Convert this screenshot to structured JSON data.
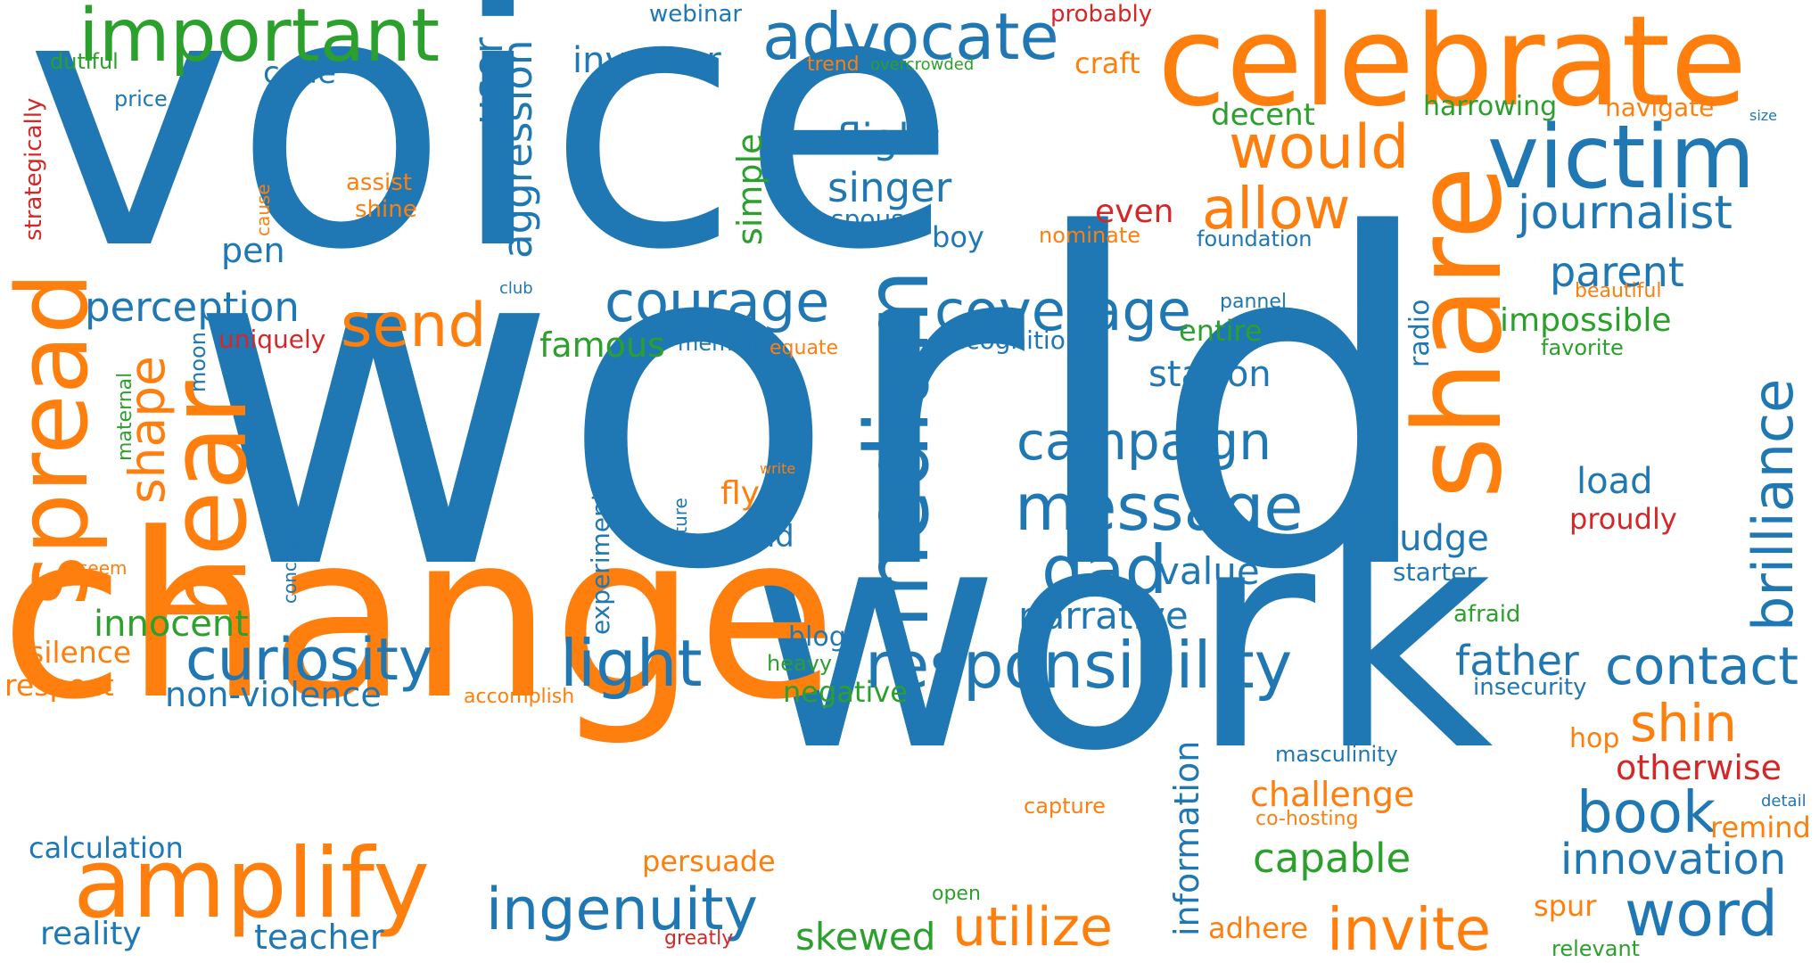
{
  "palette": {
    "blue": "#1f77b4",
    "orange": "#ff7f0e",
    "green": "#2ca02c",
    "red": "#d62728"
  },
  "words": [
    {
      "text": "voice",
      "color": "blue"
    },
    {
      "text": "world",
      "color": "blue"
    },
    {
      "text": "work",
      "color": "blue"
    },
    {
      "text": "change",
      "color": "orange"
    },
    {
      "text": "celebrate",
      "color": "orange"
    },
    {
      "text": "important",
      "color": "green"
    },
    {
      "text": "advocate",
      "color": "blue"
    },
    {
      "text": "victim",
      "color": "blue"
    },
    {
      "text": "journalist",
      "color": "blue"
    },
    {
      "text": "share",
      "color": "orange"
    },
    {
      "text": "would",
      "color": "orange"
    },
    {
      "text": "allow",
      "color": "orange"
    },
    {
      "text": "hear",
      "color": "orange"
    },
    {
      "text": "spread",
      "color": "orange"
    },
    {
      "text": "send",
      "color": "orange"
    },
    {
      "text": "amplify",
      "color": "orange"
    },
    {
      "text": "medium",
      "color": "blue"
    },
    {
      "text": "courage",
      "color": "blue"
    },
    {
      "text": "coverage",
      "color": "blue"
    },
    {
      "text": "perception",
      "color": "blue"
    },
    {
      "text": "curiosity",
      "color": "blue"
    },
    {
      "text": "light",
      "color": "blue"
    },
    {
      "text": "responsibility",
      "color": "blue"
    },
    {
      "text": "campaign",
      "color": "blue"
    },
    {
      "text": "message",
      "color": "blue"
    },
    {
      "text": "dad",
      "color": "blue"
    },
    {
      "text": "value",
      "color": "blue"
    },
    {
      "text": "narrative",
      "color": "blue"
    },
    {
      "text": "ingenuity",
      "color": "blue"
    },
    {
      "text": "contact",
      "color": "blue"
    },
    {
      "text": "father",
      "color": "blue"
    },
    {
      "text": "book",
      "color": "blue"
    },
    {
      "text": "innovation",
      "color": "blue"
    },
    {
      "text": "word",
      "color": "blue"
    },
    {
      "text": "brilliance",
      "color": "blue"
    },
    {
      "text": "parent",
      "color": "blue"
    },
    {
      "text": "flight",
      "color": "blue"
    },
    {
      "text": "singer",
      "color": "blue"
    },
    {
      "text": "user",
      "color": "blue"
    },
    {
      "text": "aggression",
      "color": "blue"
    },
    {
      "text": "inventor",
      "color": "blue"
    },
    {
      "text": "code",
      "color": "blue"
    },
    {
      "text": "pen",
      "color": "blue"
    },
    {
      "text": "shape",
      "color": "orange"
    },
    {
      "text": "station",
      "color": "blue"
    },
    {
      "text": "information",
      "color": "blue"
    },
    {
      "text": "utilize",
      "color": "orange"
    },
    {
      "text": "invite",
      "color": "orange"
    },
    {
      "text": "shin",
      "color": "orange"
    },
    {
      "text": "challenge",
      "color": "orange"
    },
    {
      "text": "capable",
      "color": "green"
    },
    {
      "text": "teacher",
      "color": "blue"
    },
    {
      "text": "reality",
      "color": "blue"
    },
    {
      "text": "calculation",
      "color": "blue"
    },
    {
      "text": "non-violence",
      "color": "blue"
    },
    {
      "text": "innocent",
      "color": "green"
    },
    {
      "text": "silence",
      "color": "orange"
    },
    {
      "text": "respect",
      "color": "orange"
    },
    {
      "text": "persuade",
      "color": "orange"
    },
    {
      "text": "skewed",
      "color": "green"
    },
    {
      "text": "famous",
      "color": "green"
    },
    {
      "text": "simple",
      "color": "green"
    },
    {
      "text": "decent",
      "color": "green"
    },
    {
      "text": "craft",
      "color": "orange"
    },
    {
      "text": "harrowing",
      "color": "green"
    },
    {
      "text": "navigate",
      "color": "orange"
    },
    {
      "text": "webinar",
      "color": "blue"
    },
    {
      "text": "probably",
      "color": "red"
    },
    {
      "text": "even",
      "color": "red"
    },
    {
      "text": "boy",
      "color": "blue"
    },
    {
      "text": "spouse",
      "color": "blue"
    },
    {
      "text": "nominate",
      "color": "orange"
    },
    {
      "text": "foundation",
      "color": "blue"
    },
    {
      "text": "recognition",
      "color": "blue"
    },
    {
      "text": "entire",
      "color": "green"
    },
    {
      "text": "impossible",
      "color": "green"
    },
    {
      "text": "favorite",
      "color": "green"
    },
    {
      "text": "beautiful",
      "color": "orange"
    },
    {
      "text": "radio",
      "color": "blue"
    },
    {
      "text": "load",
      "color": "blue"
    },
    {
      "text": "proudly",
      "color": "red"
    },
    {
      "text": "judge",
      "color": "blue"
    },
    {
      "text": "starter",
      "color": "blue"
    },
    {
      "text": "afraid",
      "color": "green"
    },
    {
      "text": "insecurity",
      "color": "blue"
    },
    {
      "text": "hop",
      "color": "orange"
    },
    {
      "text": "otherwise",
      "color": "red"
    },
    {
      "text": "masculinity",
      "color": "blue"
    },
    {
      "text": "co-hosting",
      "color": "orange"
    },
    {
      "text": "detail",
      "color": "blue"
    },
    {
      "text": "remind",
      "color": "orange"
    },
    {
      "text": "spur",
      "color": "orange"
    },
    {
      "text": "relevant",
      "color": "green"
    },
    {
      "text": "adhere",
      "color": "orange"
    },
    {
      "text": "capture",
      "color": "orange"
    },
    {
      "text": "open",
      "color": "green"
    },
    {
      "text": "greatly",
      "color": "red"
    },
    {
      "text": "negative",
      "color": "green"
    },
    {
      "text": "heavy",
      "color": "green"
    },
    {
      "text": "blog",
      "color": "blue"
    },
    {
      "text": "accomplish",
      "color": "orange"
    },
    {
      "text": "experiment",
      "color": "blue"
    },
    {
      "text": "picture",
      "color": "blue"
    },
    {
      "text": "fly",
      "color": "orange"
    },
    {
      "text": "mind",
      "color": "blue"
    },
    {
      "text": "write",
      "color": "orange"
    },
    {
      "text": "memoir",
      "color": "blue"
    },
    {
      "text": "equate",
      "color": "orange"
    },
    {
      "text": "uniquely",
      "color": "red"
    },
    {
      "text": "moon",
      "color": "blue"
    },
    {
      "text": "maternal",
      "color": "green"
    },
    {
      "text": "concept",
      "color": "blue"
    },
    {
      "text": "seem",
      "color": "orange"
    },
    {
      "text": "assist",
      "color": "orange"
    },
    {
      "text": "shine",
      "color": "orange"
    },
    {
      "text": "cause",
      "color": "orange"
    },
    {
      "text": "club",
      "color": "blue"
    },
    {
      "text": "pannel",
      "color": "blue"
    },
    {
      "text": "dutiful",
      "color": "green"
    },
    {
      "text": "price",
      "color": "blue"
    },
    {
      "text": "strategically",
      "color": "red"
    },
    {
      "text": "trend",
      "color": "orange"
    },
    {
      "text": "overcrowded",
      "color": "green"
    },
    {
      "text": "size",
      "color": "blue"
    }
  ]
}
